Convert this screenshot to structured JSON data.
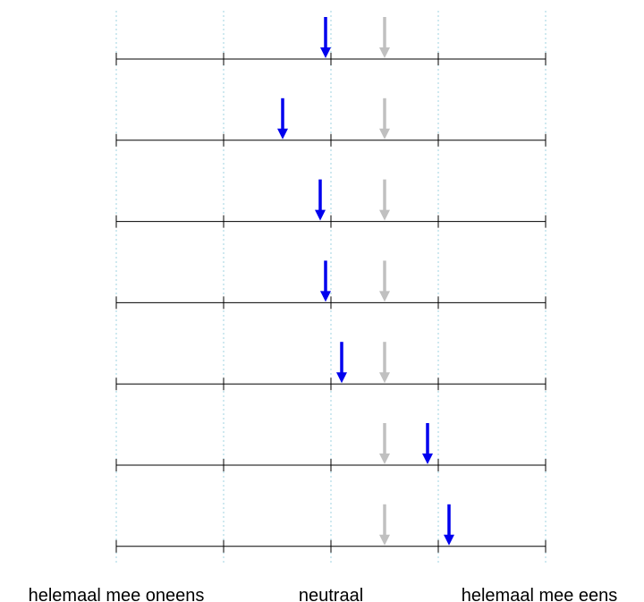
{
  "chart_data": {
    "type": "scatter",
    "title": "",
    "xlabel": "",
    "ylabel": "",
    "xlim": [
      1,
      5
    ],
    "x_ticks": [
      1,
      2,
      3,
      4,
      5
    ],
    "grid": true,
    "axis_labels": {
      "min": "helemaal mee oneens",
      "mid": "neutraal",
      "max": "helemaal mee eens"
    },
    "reference_value": 3.5,
    "rows": [
      {
        "value": 2.95,
        "reference": 3.5
      },
      {
        "value": 2.55,
        "reference": 3.5
      },
      {
        "value": 2.9,
        "reference": 3.5
      },
      {
        "value": 2.95,
        "reference": 3.5
      },
      {
        "value": 3.1,
        "reference": 3.5
      },
      {
        "value": 3.9,
        "reference": 3.5
      },
      {
        "value": 4.1,
        "reference": 3.5
      }
    ],
    "colors": {
      "value_arrow": "#0000ee",
      "reference_arrow": "#c0c0c0",
      "gridline": "#9fd3e0",
      "axis": "#000000"
    }
  }
}
